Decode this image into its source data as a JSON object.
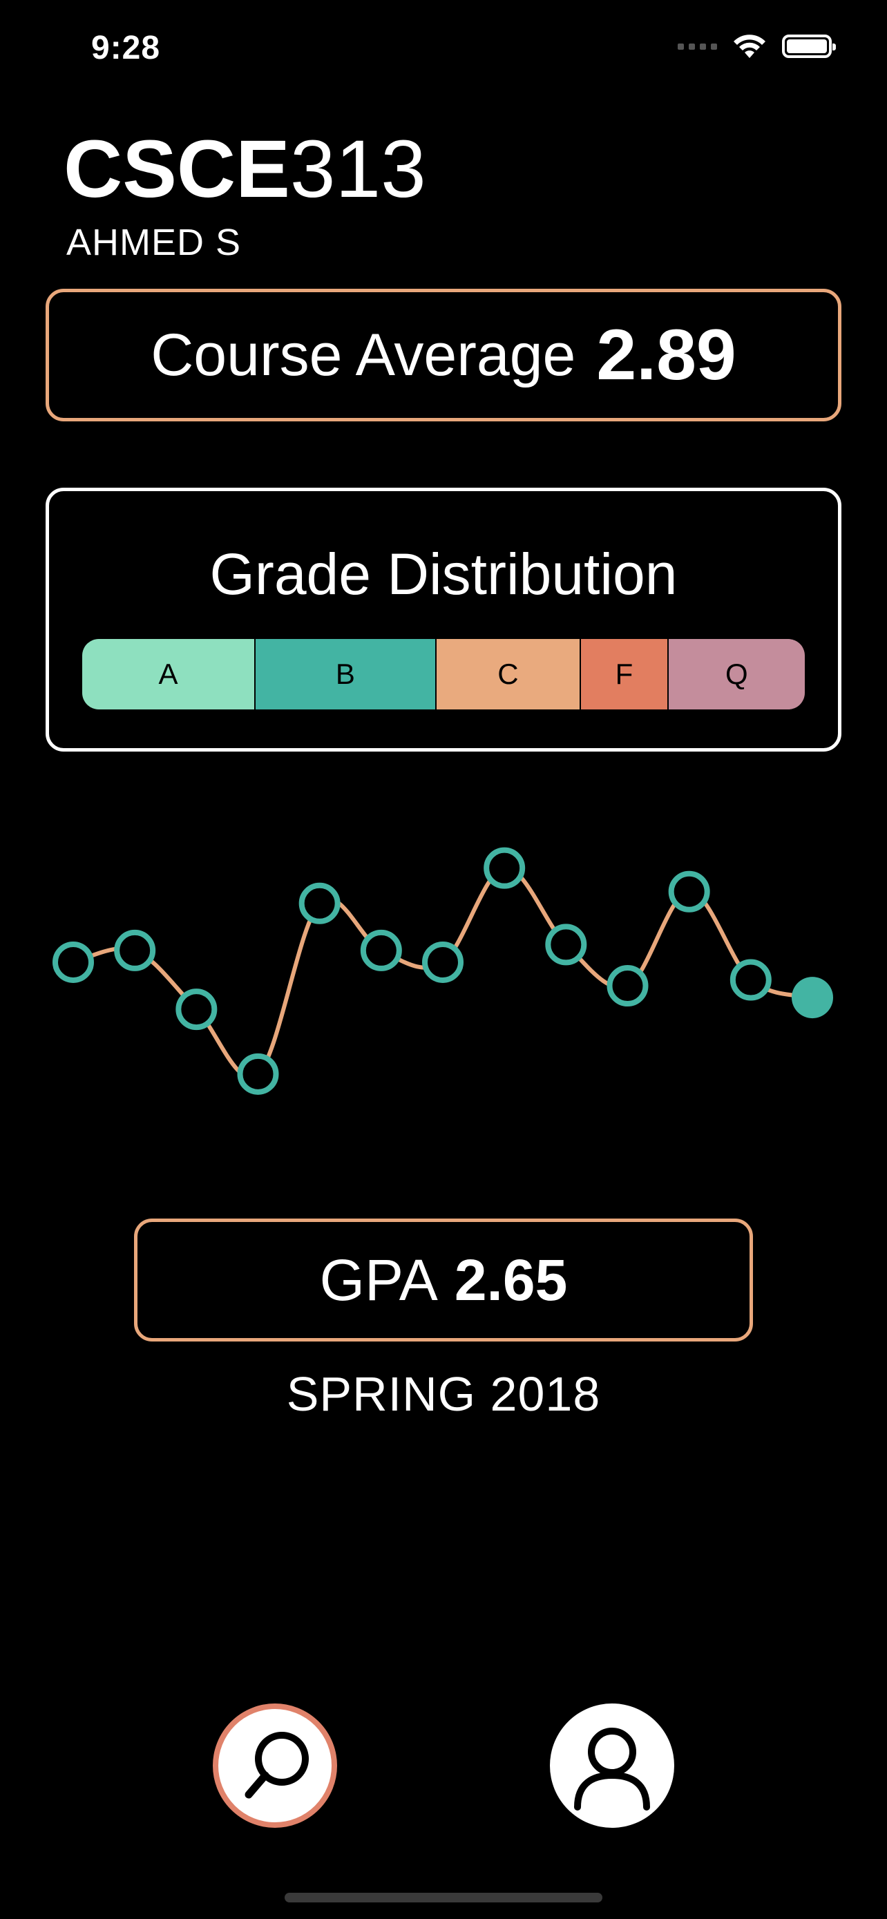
{
  "status_bar": {
    "time": "9:28"
  },
  "course": {
    "code": "CSCE",
    "number": "313",
    "instructor": "AHMED S"
  },
  "average": {
    "label": "Course Average",
    "value": "2.89"
  },
  "distribution": {
    "title": "Grade Distribution",
    "segments": [
      {
        "label": "A",
        "share": 0.24,
        "color": "#8ee0bf"
      },
      {
        "label": "B",
        "share": 0.25,
        "color": "#43b4a3"
      },
      {
        "label": "C",
        "share": 0.2,
        "color": "#e9aa7e"
      },
      {
        "label": "F",
        "share": 0.12,
        "color": "#e27e60"
      },
      {
        "label": "Q",
        "share": 0.19,
        "color": "#c48d9c"
      }
    ]
  },
  "chart_data": {
    "type": "line",
    "values": [
      2.45,
      2.55,
      2.05,
      1.5,
      2.95,
      2.55,
      2.45,
      3.25,
      2.6,
      2.25,
      3.05,
      2.3,
      2.15
    ],
    "ylim": [
      1.0,
      3.7
    ],
    "line_color": "#e8a77b",
    "point_color": "#43b4a3"
  },
  "gpa": {
    "label": "GPA",
    "value": "2.65",
    "semester": "SPRING 2018"
  },
  "nav": {
    "search_icon": "search-icon",
    "profile_icon": "profile-icon",
    "accent": "#e0826a"
  }
}
